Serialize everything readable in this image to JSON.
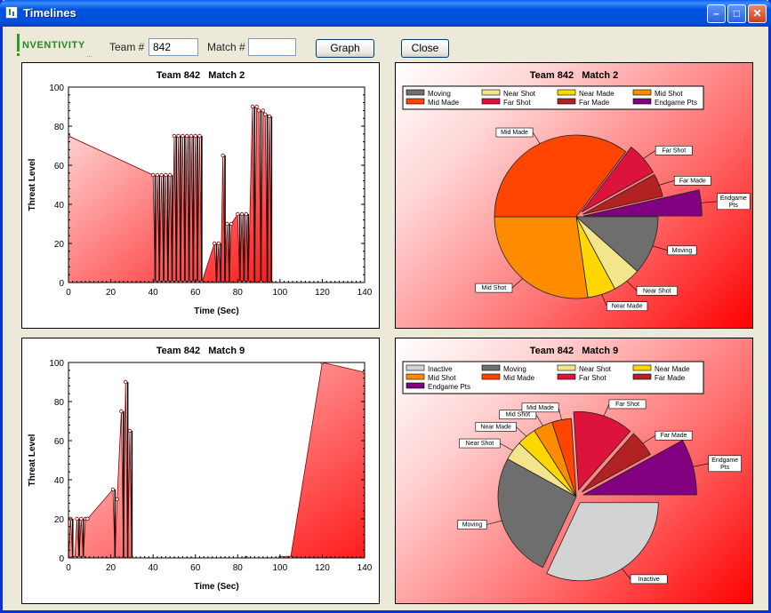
{
  "window": {
    "title": "Timelines"
  },
  "toolbar": {
    "logo_text": "NVENTIVITY",
    "team_label": "Team #",
    "team_value": "842",
    "match_label": "Match #",
    "match_value": "",
    "graph_label": "Graph",
    "close_label": "Close"
  },
  "timelines": [
    {
      "title": "Team 842   Match 2",
      "xlabel": "Time (Sec)",
      "ylabel": "Threat Level",
      "xticks": [
        "0",
        "20",
        "40",
        "60",
        "80",
        "100",
        "120",
        "140"
      ],
      "yticks": [
        "0",
        "20",
        "40",
        "60",
        "80",
        "100"
      ]
    },
    {
      "title": "Team 842   Match 9",
      "xlabel": "Time (Sec)",
      "ylabel": "Threat Level",
      "xticks": [
        "0",
        "20",
        "40",
        "60",
        "80",
        "100",
        "120",
        "140"
      ],
      "yticks": [
        "0",
        "20",
        "40",
        "60",
        "80",
        "100"
      ]
    }
  ],
  "pies": [
    {
      "title": "Team 842   Match 2",
      "legend": [
        "Moving",
        "Near Shot",
        "Near Made",
        "Mid Shot",
        "Mid Made",
        "Far Shot",
        "Far Made",
        "Endgame Pts"
      ],
      "labels": [
        "Moving",
        "Near Shot",
        "Near Made",
        "Mid Shot",
        "Mid Made",
        "Far Shot",
        "Far Made",
        "Endgame Pts"
      ]
    },
    {
      "title": "Team 842   Match 9",
      "legend": [
        "Inactive",
        "Moving",
        "Near Shot",
        "Near Made",
        "Mid Shot",
        "Mid Made",
        "Far Shot",
        "Far Made",
        "Endgame Pts"
      ],
      "labels": [
        "Inactive",
        "Moving",
        "Near Shot",
        "Near Made",
        "Mid Shot",
        "Mid Made",
        "Far Shot",
        "Far Made",
        "Endgame Pts"
      ]
    }
  ],
  "chart_data": [
    {
      "type": "area",
      "title": "Team 842   Match 2",
      "xlabel": "Time (Sec)",
      "ylabel": "Threat Level",
      "xlim": [
        0,
        140
      ],
      "ylim": [
        0,
        100
      ],
      "series": [
        {
          "x": [
            0,
            40,
            41,
            42,
            43,
            44,
            45,
            46,
            47,
            48,
            49,
            50,
            51,
            52,
            53,
            54,
            55,
            56,
            57,
            58,
            59,
            60,
            61,
            62,
            63,
            69,
            70,
            71,
            72,
            73,
            74,
            75,
            76,
            77,
            80,
            81,
            82,
            83,
            84,
            85,
            87,
            88,
            89,
            90,
            91,
            92,
            93,
            94,
            95,
            96
          ],
          "y": [
            75,
            55,
            0,
            55,
            0,
            55,
            0,
            55,
            0,
            55,
            0,
            75,
            0,
            75,
            0,
            75,
            0,
            75,
            0,
            75,
            0,
            75,
            0,
            75,
            0,
            20,
            0,
            20,
            0,
            65,
            0,
            30,
            0,
            30,
            35,
            0,
            35,
            0,
            35,
            0,
            90,
            0,
            90,
            88,
            0,
            88,
            86,
            0,
            85,
            0
          ]
        }
      ]
    },
    {
      "type": "area",
      "title": "Team 842   Match 9",
      "xlabel": "Time (Sec)",
      "ylabel": "Threat Level",
      "xlim": [
        0,
        140
      ],
      "ylim": [
        0,
        100
      ],
      "series": [
        {
          "x": [
            0,
            1,
            2,
            3,
            4,
            5,
            6,
            7,
            8,
            9,
            21,
            22,
            23,
            25,
            26,
            27,
            28,
            29,
            30,
            84,
            85,
            100,
            101,
            103,
            104,
            105,
            120,
            140
          ],
          "y": [
            0,
            20,
            0,
            0,
            20,
            0,
            20,
            0,
            20,
            20,
            35,
            0,
            30,
            75,
            0,
            90,
            0,
            65,
            0,
            0,
            -3,
            0,
            0,
            0,
            0,
            0,
            100,
            95
          ]
        }
      ]
    },
    {
      "type": "pie",
      "title": "Team 842   Match 2",
      "categories": [
        "Moving",
        "Near Shot",
        "Near Made",
        "Mid Shot",
        "Mid Made",
        "Far Shot",
        "Far Made",
        "Endgame Pts"
      ],
      "values": [
        11.5,
        5.5,
        5.5,
        27,
        35,
        6.5,
        4.5,
        3.5
      ],
      "colors": [
        "#6E6E6E",
        "#F2E58C",
        "#FFD700",
        "#FF8C00",
        "#FF4500",
        "#DC143C",
        "#B22222",
        "#800080"
      ]
    },
    {
      "type": "pie",
      "title": "Team 842   Match 9",
      "categories": [
        "Inactive",
        "Moving",
        "Near Shot",
        "Near Made",
        "Mid Shot",
        "Mid Made",
        "Far Shot",
        "Far Made",
        "Endgame Pts"
      ],
      "values": [
        32,
        26,
        4,
        4,
        4,
        4,
        12.5,
        5.5,
        8
      ],
      "colors": [
        "#D3D3D3",
        "#6E6E6E",
        "#F2E58C",
        "#FFD700",
        "#FF8C00",
        "#FF4500",
        "#DC143C",
        "#B22222",
        "#800080"
      ]
    }
  ]
}
